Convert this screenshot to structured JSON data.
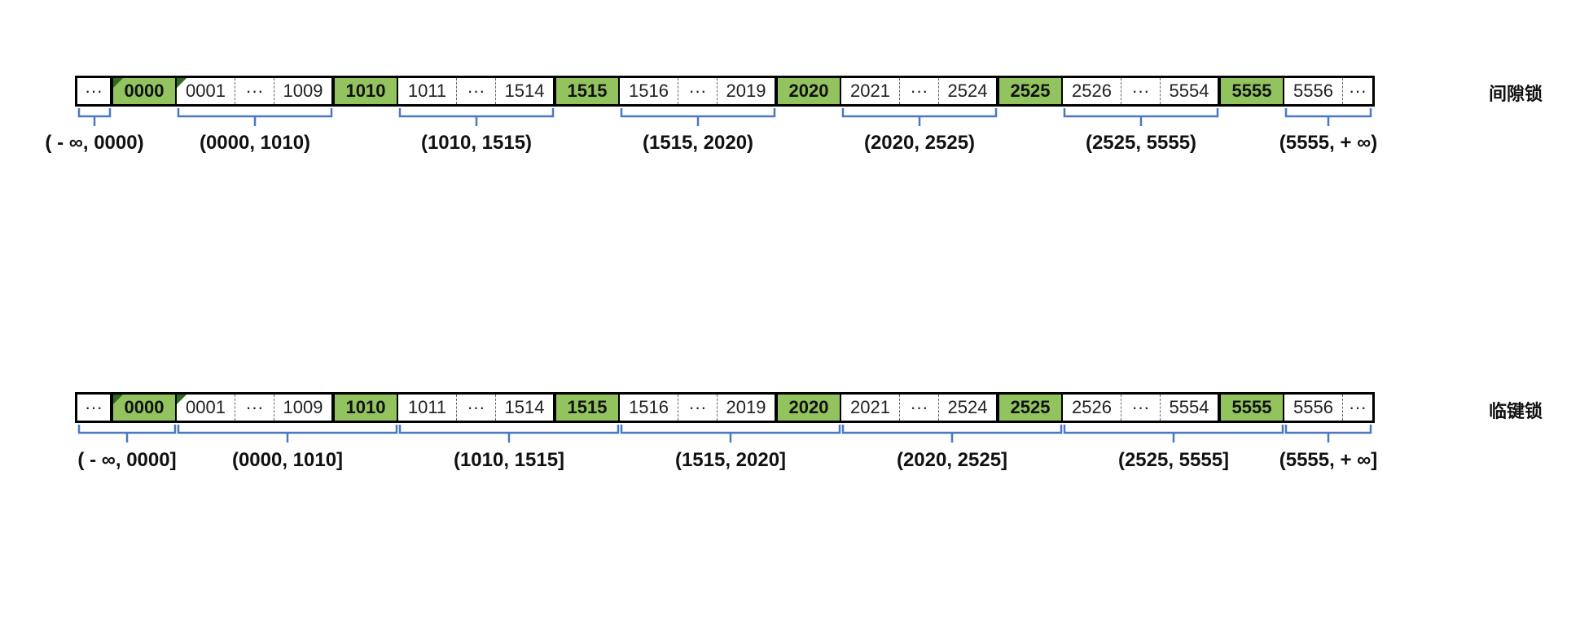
{
  "cells": [
    "···",
    "0000",
    "0001",
    "···",
    "1009",
    "1010",
    "1011",
    "···",
    "1514",
    "1515",
    "1516",
    "···",
    "2019",
    "2020",
    "2021",
    "···",
    "2524",
    "2525",
    "2526",
    "···",
    "5554",
    "5555",
    "5556",
    "···"
  ],
  "key_indices": [
    1,
    5,
    9,
    13,
    17,
    21
  ],
  "gap_lock": {
    "title": "间隙锁",
    "intervals": [
      "( - ∞, 0000)",
      "(0000, 1010)",
      "(1010, 1515)",
      "(1515, 2020)",
      "(2020, 2525)",
      "(2525, 5555)",
      "(5555, + ∞)"
    ]
  },
  "next_key_lock": {
    "title": "临键锁",
    "intervals": [
      "( - ∞, 0000]",
      "(0000, 1010]",
      "(1010, 1515]",
      "(1515, 2020]",
      "(2020, 2525]",
      "(2525, 5555]",
      "(5555, + ∞]"
    ]
  },
  "colors": {
    "key_fill": "#92c35f",
    "brace": "#4a78c2",
    "corner": "#2e6b1f"
  }
}
